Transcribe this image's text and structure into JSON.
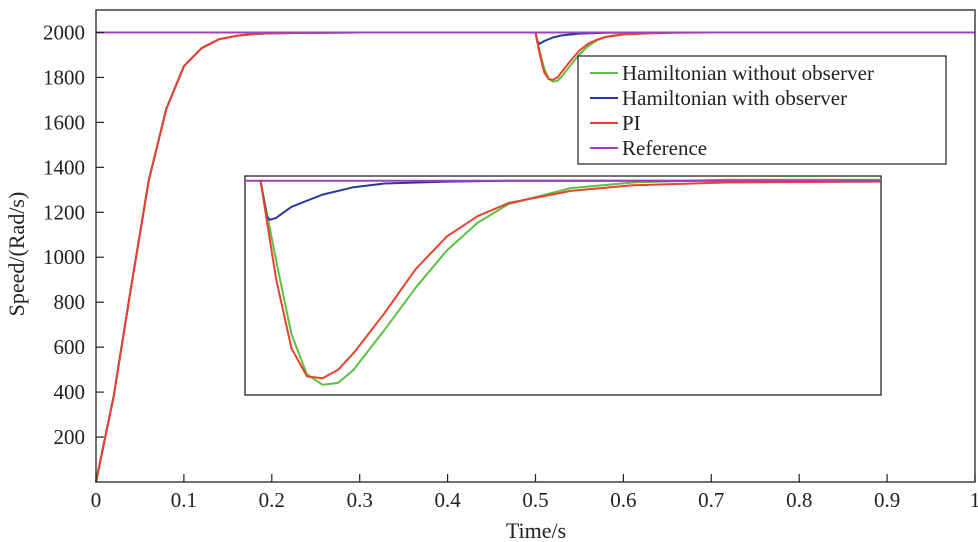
{
  "chart_data": {
    "type": "line",
    "title": "",
    "xlabel": "Time/s",
    "ylabel": "Speed/(Rad/s)",
    "xlim": [
      0,
      1
    ],
    "ylim": [
      0,
      2100
    ],
    "grid": false,
    "legend_position": "top-right",
    "x_ticks": [
      {
        "value": 0,
        "label": "0"
      },
      {
        "value": 0.1,
        "label": "0.1"
      },
      {
        "value": 0.2,
        "label": "0.2"
      },
      {
        "value": 0.3,
        "label": "0.3"
      },
      {
        "value": 0.4,
        "label": "0.4"
      },
      {
        "value": 0.5,
        "label": "0.5"
      },
      {
        "value": 0.6,
        "label": "0.6"
      },
      {
        "value": 0.7,
        "label": "0.7"
      },
      {
        "value": 0.8,
        "label": "0.8"
      },
      {
        "value": 0.9,
        "label": "0.9"
      },
      {
        "value": 1,
        "label": "1"
      }
    ],
    "y_ticks": [
      {
        "value": 200,
        "label": "200"
      },
      {
        "value": 400,
        "label": "400"
      },
      {
        "value": 600,
        "label": "600"
      },
      {
        "value": 800,
        "label": "800"
      },
      {
        "value": 1000,
        "label": "1000"
      },
      {
        "value": 1200,
        "label": "1200"
      },
      {
        "value": 1400,
        "label": "1400"
      },
      {
        "value": 1600,
        "label": "1600"
      },
      {
        "value": 1800,
        "label": "1800"
      },
      {
        "value": 2000,
        "label": "2000"
      }
    ],
    "series": [
      {
        "name": "Hamiltonian without observer",
        "color": "#5cc040",
        "x": [
          0,
          0.02,
          0.04,
          0.06,
          0.08,
          0.1,
          0.12,
          0.14,
          0.16,
          0.18,
          0.2,
          0.25,
          0.3,
          0.35,
          0.4,
          0.45,
          0.5,
          0.505,
          0.51,
          0.515,
          0.52,
          0.525,
          0.53,
          0.54,
          0.55,
          0.56,
          0.57,
          0.58,
          0.6,
          0.63,
          0.66,
          0.7,
          1.0
        ],
        "values": [
          0,
          380,
          870,
          1340,
          1660,
          1850,
          1930,
          1970,
          1985,
          1993,
          1997,
          1999,
          2000,
          2000,
          2000,
          2000,
          2000,
          1915,
          1838,
          1795,
          1781,
          1785,
          1805,
          1855,
          1903,
          1940,
          1965,
          1981,
          1994,
          1999,
          2000,
          2000,
          2000
        ]
      },
      {
        "name": "Hamiltonian with observer",
        "color": "#2a3aa0",
        "x": [
          0,
          0.02,
          0.04,
          0.06,
          0.08,
          0.1,
          0.12,
          0.14,
          0.16,
          0.18,
          0.2,
          0.25,
          0.3,
          0.35,
          0.4,
          0.45,
          0.5,
          0.502,
          0.505,
          0.51,
          0.52,
          0.53,
          0.55,
          0.58,
          0.62,
          0.7,
          1.0
        ],
        "values": [
          0,
          380,
          870,
          1340,
          1660,
          1850,
          1930,
          1970,
          1985,
          1993,
          1997,
          1999,
          2000,
          2000,
          2000,
          2000,
          2000,
          1960,
          1950,
          1962,
          1978,
          1987,
          1995,
          1999,
          2000,
          2000,
          2000
        ]
      },
      {
        "name": "PI",
        "color": "#e8432e",
        "x": [
          0,
          0.02,
          0.04,
          0.06,
          0.08,
          0.1,
          0.12,
          0.14,
          0.16,
          0.18,
          0.2,
          0.25,
          0.3,
          0.35,
          0.4,
          0.45,
          0.5,
          0.505,
          0.51,
          0.515,
          0.52,
          0.525,
          0.53,
          0.54,
          0.55,
          0.56,
          0.57,
          0.58,
          0.6,
          0.63,
          0.66,
          0.7,
          1.0
        ],
        "values": [
          0,
          380,
          870,
          1340,
          1660,
          1850,
          1930,
          1970,
          1985,
          1993,
          1997,
          1999,
          2000,
          2000,
          2000,
          2000,
          2000,
          1900,
          1822,
          1792,
          1790,
          1800,
          1825,
          1875,
          1920,
          1950,
          1968,
          1980,
          1991,
          1996,
          1999,
          2000,
          2000
        ]
      },
      {
        "name": "Reference",
        "color": "#a040c0",
        "x": [
          0,
          1
        ],
        "values": [
          2000,
          2000
        ]
      }
    ],
    "inset": {
      "description": "zoom of the disturbance response",
      "xlim": [
        0.495,
        0.7
      ],
      "ylim": [
        1770,
        2005
      ],
      "series": [
        {
          "name": "Hamiltonian without observer",
          "color": "#5cc040",
          "x": [
            0.5,
            0.505,
            0.51,
            0.515,
            0.52,
            0.525,
            0.53,
            0.54,
            0.55,
            0.56,
            0.57,
            0.58,
            0.6,
            0.62,
            0.65,
            0.7
          ],
          "values": [
            2000,
            1915,
            1835,
            1792,
            1781,
            1783,
            1797,
            1840,
            1885,
            1925,
            1955,
            1975,
            1992,
            1998,
            2001,
            2001
          ]
        },
        {
          "name": "Hamiltonian with observer",
          "color": "#2a3aa0",
          "x": [
            0.5,
            0.502,
            0.503,
            0.505,
            0.51,
            0.52,
            0.53,
            0.54,
            0.56,
            0.58,
            0.6,
            0.7
          ],
          "values": [
            2000,
            1962,
            1958,
            1960,
            1972,
            1985,
            1993,
            1997,
            1999,
            2000,
            2000,
            2000
          ]
        },
        {
          "name": "PI",
          "color": "#e8432e",
          "x": [
            0.5,
            0.505,
            0.51,
            0.515,
            0.52,
            0.525,
            0.53,
            0.54,
            0.55,
            0.56,
            0.57,
            0.58,
            0.6,
            0.62,
            0.65,
            0.7
          ],
          "values": [
            2000,
            1895,
            1820,
            1790,
            1788,
            1797,
            1815,
            1858,
            1905,
            1940,
            1962,
            1976,
            1989,
            1995,
            1998,
            1999
          ]
        },
        {
          "name": "Reference",
          "color": "#a040c0",
          "x": [
            0.495,
            0.7
          ],
          "values": [
            2000,
            2000
          ]
        }
      ]
    }
  }
}
